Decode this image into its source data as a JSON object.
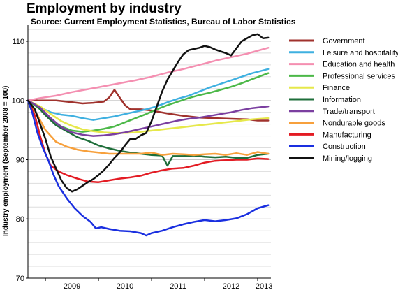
{
  "title": "Employment by industry",
  "subtitle": "Source: Current Employment Statistics, Bureau of Labor Statistics",
  "chart_data": {
    "type": "line",
    "title": "Employment by industry",
    "subtitle": "Source: Current Employment Statistics, Bureau of Labor Statistics",
    "xlabel": "",
    "ylabel": "Industry employment (September 2008 = 100)",
    "xlim": [
      2008.67,
      2013.25
    ],
    "ylim": [
      70,
      112
    ],
    "yticks": [
      70,
      80,
      90,
      100,
      110
    ],
    "xticks": [
      "2009",
      "2010",
      "2011",
      "2012",
      "2013"
    ],
    "grid": "horizontal",
    "legend": "right",
    "series": [
      {
        "name": "Government",
        "color": "#a0322d",
        "points": [
          [
            2008.67,
            100
          ],
          [
            2008.9,
            100
          ],
          [
            2009.2,
            100
          ],
          [
            2009.5,
            99.7
          ],
          [
            2009.7,
            99.5
          ],
          [
            2009.9,
            99.6
          ],
          [
            2010.1,
            99.8
          ],
          [
            2010.2,
            100.5
          ],
          [
            2010.3,
            101.8
          ],
          [
            2010.4,
            100.5
          ],
          [
            2010.5,
            99.2
          ],
          [
            2010.6,
            98.5
          ],
          [
            2010.8,
            98.5
          ],
          [
            2011.0,
            98.3
          ],
          [
            2011.3,
            97.8
          ],
          [
            2011.6,
            97.4
          ],
          [
            2011.9,
            97.1
          ],
          [
            2012.2,
            97.0
          ],
          [
            2012.5,
            96.9
          ],
          [
            2012.8,
            96.8
          ],
          [
            2013.0,
            96.6
          ],
          [
            2013.2,
            96.6
          ]
        ]
      },
      {
        "name": "Leisure and hospitality",
        "color": "#3fb0e0",
        "points": [
          [
            2008.67,
            100
          ],
          [
            2008.9,
            98.8
          ],
          [
            2009.1,
            98.0
          ],
          [
            2009.3,
            97.6
          ],
          [
            2009.5,
            97.4
          ],
          [
            2009.7,
            97.0
          ],
          [
            2009.9,
            96.7
          ],
          [
            2010.1,
            97.0
          ],
          [
            2010.3,
            97.3
          ],
          [
            2010.5,
            97.7
          ],
          [
            2010.7,
            98.1
          ],
          [
            2010.9,
            98.5
          ],
          [
            2011.1,
            99.0
          ],
          [
            2011.3,
            99.7
          ],
          [
            2011.5,
            100.3
          ],
          [
            2011.7,
            100.8
          ],
          [
            2011.9,
            101.5
          ],
          [
            2012.1,
            102.2
          ],
          [
            2012.3,
            102.8
          ],
          [
            2012.5,
            103.4
          ],
          [
            2012.7,
            104.0
          ],
          [
            2012.9,
            104.6
          ],
          [
            2013.2,
            105.3
          ]
        ]
      },
      {
        "name": "Education and health",
        "color": "#f48fb1",
        "points": [
          [
            2008.67,
            100
          ],
          [
            2008.9,
            100.4
          ],
          [
            2009.2,
            100.8
          ],
          [
            2009.5,
            101.4
          ],
          [
            2009.8,
            101.9
          ],
          [
            2010.1,
            102.4
          ],
          [
            2010.4,
            102.9
          ],
          [
            2010.7,
            103.4
          ],
          [
            2011.0,
            104.0
          ],
          [
            2011.3,
            104.7
          ],
          [
            2011.6,
            105.3
          ],
          [
            2011.9,
            106.0
          ],
          [
            2012.2,
            106.7
          ],
          [
            2012.5,
            107.3
          ],
          [
            2012.8,
            107.9
          ],
          [
            2013.0,
            108.4
          ],
          [
            2013.2,
            108.9
          ]
        ]
      },
      {
        "name": "Professional services",
        "color": "#4cb848",
        "points": [
          [
            2008.67,
            100
          ],
          [
            2008.9,
            98.5
          ],
          [
            2009.1,
            96.8
          ],
          [
            2009.3,
            95.6
          ],
          [
            2009.5,
            94.9
          ],
          [
            2009.7,
            94.7
          ],
          [
            2009.9,
            94.9
          ],
          [
            2010.1,
            95.2
          ],
          [
            2010.3,
            95.6
          ],
          [
            2010.5,
            96.3
          ],
          [
            2010.7,
            97.0
          ],
          [
            2010.9,
            97.7
          ],
          [
            2011.1,
            98.5
          ],
          [
            2011.3,
            99.2
          ],
          [
            2011.5,
            99.8
          ],
          [
            2011.7,
            100.4
          ],
          [
            2011.9,
            100.9
          ],
          [
            2012.1,
            101.3
          ],
          [
            2012.3,
            101.8
          ],
          [
            2012.5,
            102.3
          ],
          [
            2012.7,
            102.9
          ],
          [
            2012.9,
            103.6
          ],
          [
            2013.2,
            104.6
          ]
        ]
      },
      {
        "name": "Finance",
        "color": "#e6e84a",
        "points": [
          [
            2008.67,
            100
          ],
          [
            2008.9,
            99.0
          ],
          [
            2009.1,
            97.7
          ],
          [
            2009.3,
            96.5
          ],
          [
            2009.5,
            95.7
          ],
          [
            2009.7,
            95.1
          ],
          [
            2009.9,
            94.8
          ],
          [
            2010.1,
            94.6
          ],
          [
            2010.3,
            94.5
          ],
          [
            2010.5,
            94.5
          ],
          [
            2010.7,
            94.6
          ],
          [
            2010.9,
            94.8
          ],
          [
            2011.1,
            95.0
          ],
          [
            2011.3,
            95.2
          ],
          [
            2011.5,
            95.4
          ],
          [
            2011.7,
            95.6
          ],
          [
            2011.9,
            95.8
          ],
          [
            2012.1,
            96.0
          ],
          [
            2012.3,
            96.2
          ],
          [
            2012.5,
            96.4
          ],
          [
            2012.7,
            96.6
          ],
          [
            2012.9,
            96.8
          ],
          [
            2013.2,
            97.0
          ]
        ]
      },
      {
        "name": "Information",
        "color": "#1e6e3a",
        "points": [
          [
            2008.67,
            100
          ],
          [
            2008.85,
            99.0
          ],
          [
            2009.0,
            97.5
          ],
          [
            2009.2,
            95.8
          ],
          [
            2009.4,
            94.8
          ],
          [
            2009.6,
            93.8
          ],
          [
            2009.8,
            93.2
          ],
          [
            2010.0,
            92.4
          ],
          [
            2010.2,
            91.9
          ],
          [
            2010.4,
            91.5
          ],
          [
            2010.6,
            91.2
          ],
          [
            2010.8,
            91.0
          ],
          [
            2011.0,
            90.8
          ],
          [
            2011.2,
            90.7
          ],
          [
            2011.3,
            89.0
          ],
          [
            2011.4,
            90.6
          ],
          [
            2011.6,
            90.6
          ],
          [
            2011.8,
            90.7
          ],
          [
            2012.0,
            90.5
          ],
          [
            2012.2,
            90.4
          ],
          [
            2012.4,
            90.5
          ],
          [
            2012.6,
            90.3
          ],
          [
            2012.8,
            90.3
          ],
          [
            2013.0,
            90.8
          ],
          [
            2013.2,
            91.0
          ]
        ]
      },
      {
        "name": "Trade/transport",
        "color": "#7b3fa0",
        "points": [
          [
            2008.67,
            100
          ],
          [
            2008.9,
            98.8
          ],
          [
            2009.1,
            97.0
          ],
          [
            2009.3,
            95.5
          ],
          [
            2009.5,
            94.6
          ],
          [
            2009.7,
            94.2
          ],
          [
            2009.9,
            94.0
          ],
          [
            2010.1,
            94.1
          ],
          [
            2010.3,
            94.3
          ],
          [
            2010.5,
            94.6
          ],
          [
            2010.7,
            95.0
          ],
          [
            2010.9,
            95.4
          ],
          [
            2011.1,
            95.8
          ],
          [
            2011.3,
            96.2
          ],
          [
            2011.5,
            96.6
          ],
          [
            2011.7,
            96.9
          ],
          [
            2011.9,
            97.1
          ],
          [
            2012.1,
            97.4
          ],
          [
            2012.3,
            97.7
          ],
          [
            2012.5,
            98.0
          ],
          [
            2012.7,
            98.4
          ],
          [
            2012.9,
            98.7
          ],
          [
            2013.2,
            99.0
          ]
        ]
      },
      {
        "name": "Nondurable goods",
        "color": "#f7a03c",
        "points": [
          [
            2008.67,
            100
          ],
          [
            2008.85,
            97.5
          ],
          [
            2009.0,
            95.0
          ],
          [
            2009.2,
            93.0
          ],
          [
            2009.4,
            92.2
          ],
          [
            2009.6,
            91.7
          ],
          [
            2009.8,
            91.4
          ],
          [
            2010.0,
            91.2
          ],
          [
            2010.2,
            91.0
          ],
          [
            2010.4,
            91.0
          ],
          [
            2010.6,
            91.0
          ],
          [
            2010.8,
            91.0
          ],
          [
            2011.0,
            91.2
          ],
          [
            2011.2,
            90.8
          ],
          [
            2011.4,
            91.0
          ],
          [
            2011.6,
            90.9
          ],
          [
            2011.8,
            90.8
          ],
          [
            2012.0,
            90.9
          ],
          [
            2012.2,
            91.0
          ],
          [
            2012.4,
            90.8
          ],
          [
            2012.6,
            91.1
          ],
          [
            2012.8,
            90.8
          ],
          [
            2013.0,
            91.3
          ],
          [
            2013.2,
            91.0
          ]
        ]
      },
      {
        "name": "Manufacturing",
        "color": "#e31b23",
        "points": [
          [
            2008.67,
            100
          ],
          [
            2008.8,
            97.5
          ],
          [
            2008.9,
            94.0
          ],
          [
            2009.0,
            91.0
          ],
          [
            2009.1,
            89.0
          ],
          [
            2009.25,
            88.0
          ],
          [
            2009.4,
            87.4
          ],
          [
            2009.6,
            86.8
          ],
          [
            2009.8,
            86.3
          ],
          [
            2010.0,
            86.2
          ],
          [
            2010.2,
            86.5
          ],
          [
            2010.4,
            86.8
          ],
          [
            2010.6,
            87.0
          ],
          [
            2010.8,
            87.3
          ],
          [
            2011.0,
            87.8
          ],
          [
            2011.2,
            88.2
          ],
          [
            2011.4,
            88.5
          ],
          [
            2011.6,
            88.6
          ],
          [
            2011.8,
            89.0
          ],
          [
            2012.0,
            89.5
          ],
          [
            2012.2,
            89.8
          ],
          [
            2012.4,
            89.9
          ],
          [
            2012.6,
            90.0
          ],
          [
            2012.8,
            90.0
          ],
          [
            2013.0,
            90.2
          ],
          [
            2013.2,
            90.1
          ]
        ]
      },
      {
        "name": "Construction",
        "color": "#1a2fe0",
        "points": [
          [
            2008.67,
            100
          ],
          [
            2008.75,
            98.0
          ],
          [
            2008.85,
            94.5
          ],
          [
            2008.95,
            92.0
          ],
          [
            2009.05,
            90.0
          ],
          [
            2009.15,
            87.5
          ],
          [
            2009.25,
            85.5
          ],
          [
            2009.4,
            83.5
          ],
          [
            2009.55,
            81.8
          ],
          [
            2009.7,
            80.5
          ],
          [
            2009.85,
            79.5
          ],
          [
            2009.95,
            78.4
          ],
          [
            2010.05,
            78.6
          ],
          [
            2010.2,
            78.3
          ],
          [
            2010.4,
            78.0
          ],
          [
            2010.6,
            77.9
          ],
          [
            2010.8,
            77.6
          ],
          [
            2010.9,
            77.2
          ],
          [
            2011.0,
            77.6
          ],
          [
            2011.2,
            78.0
          ],
          [
            2011.4,
            78.6
          ],
          [
            2011.6,
            79.1
          ],
          [
            2011.8,
            79.5
          ],
          [
            2012.0,
            79.8
          ],
          [
            2012.2,
            79.6
          ],
          [
            2012.4,
            79.8
          ],
          [
            2012.6,
            80.1
          ],
          [
            2012.8,
            80.8
          ],
          [
            2013.0,
            81.8
          ],
          [
            2013.2,
            82.3
          ]
        ]
      },
      {
        "name": "Mining/logging",
        "color": "#111111",
        "points": [
          [
            2008.67,
            100
          ],
          [
            2008.8,
            98.5
          ],
          [
            2008.9,
            96.0
          ],
          [
            2009.0,
            93.5
          ],
          [
            2009.1,
            90.5
          ],
          [
            2009.2,
            88.5
          ],
          [
            2009.3,
            86.5
          ],
          [
            2009.4,
            85.2
          ],
          [
            2009.5,
            84.6
          ],
          [
            2009.6,
            85.0
          ],
          [
            2009.7,
            85.6
          ],
          [
            2009.8,
            86.2
          ],
          [
            2009.9,
            86.7
          ],
          [
            2010.0,
            87.4
          ],
          [
            2010.1,
            88.2
          ],
          [
            2010.2,
            89.2
          ],
          [
            2010.3,
            90.3
          ],
          [
            2010.4,
            91.2
          ],
          [
            2010.5,
            92.4
          ],
          [
            2010.6,
            93.5
          ],
          [
            2010.7,
            93.5
          ],
          [
            2010.8,
            94.1
          ],
          [
            2010.9,
            94.5
          ],
          [
            2011.0,
            96.5
          ],
          [
            2011.1,
            99.0
          ],
          [
            2011.2,
            101.5
          ],
          [
            2011.3,
            103.5
          ],
          [
            2011.4,
            105.0
          ],
          [
            2011.5,
            106.5
          ],
          [
            2011.6,
            107.8
          ],
          [
            2011.7,
            108.5
          ],
          [
            2011.8,
            108.7
          ],
          [
            2011.9,
            108.9
          ],
          [
            2012.0,
            109.2
          ],
          [
            2012.1,
            109.0
          ],
          [
            2012.2,
            108.6
          ],
          [
            2012.3,
            108.3
          ],
          [
            2012.4,
            108.0
          ],
          [
            2012.5,
            107.6
          ],
          [
            2012.6,
            108.8
          ],
          [
            2012.7,
            110.0
          ],
          [
            2012.8,
            110.5
          ],
          [
            2012.9,
            111.0
          ],
          [
            2013.0,
            111.2
          ],
          [
            2013.1,
            110.5
          ],
          [
            2013.2,
            110.6
          ]
        ]
      }
    ]
  }
}
